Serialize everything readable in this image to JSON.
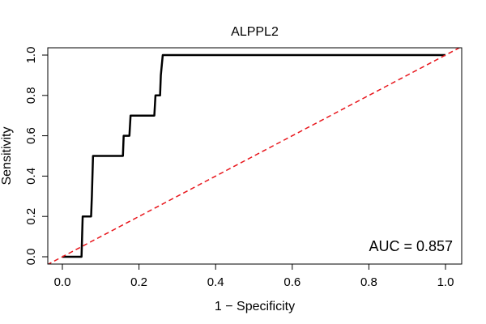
{
  "chart_data": {
    "type": "line",
    "title": "ALPPL2",
    "xlabel": "1 − Specificity",
    "ylabel": "Sensitivity",
    "xlim": [
      0,
      1
    ],
    "ylim": [
      0,
      1
    ],
    "x_ticks": [
      "0.0",
      "0.2",
      "0.4",
      "0.6",
      "0.8",
      "1.0"
    ],
    "y_ticks": [
      "0.0",
      "0.2",
      "0.4",
      "0.6",
      "0.8",
      "1.0"
    ],
    "grid": false,
    "annotation": "AUC = 0.857",
    "series": [
      {
        "style": "solid",
        "color": "#000000",
        "points": [
          [
            0.0,
            0.0
          ],
          [
            0.05,
            0.0
          ],
          [
            0.053,
            0.2
          ],
          [
            0.075,
            0.2
          ],
          [
            0.077,
            0.3
          ],
          [
            0.08,
            0.5
          ],
          [
            0.158,
            0.5
          ],
          [
            0.16,
            0.6
          ],
          [
            0.175,
            0.6
          ],
          [
            0.178,
            0.7
          ],
          [
            0.24,
            0.7
          ],
          [
            0.243,
            0.8
          ],
          [
            0.255,
            0.8
          ],
          [
            0.257,
            0.9
          ],
          [
            0.262,
            1.0
          ],
          [
            1.0,
            1.0
          ]
        ]
      },
      {
        "style": "dashed",
        "color": "#e8161c",
        "points": [
          [
            -0.04,
            -0.04
          ],
          [
            1.04,
            1.04
          ]
        ]
      }
    ]
  }
}
